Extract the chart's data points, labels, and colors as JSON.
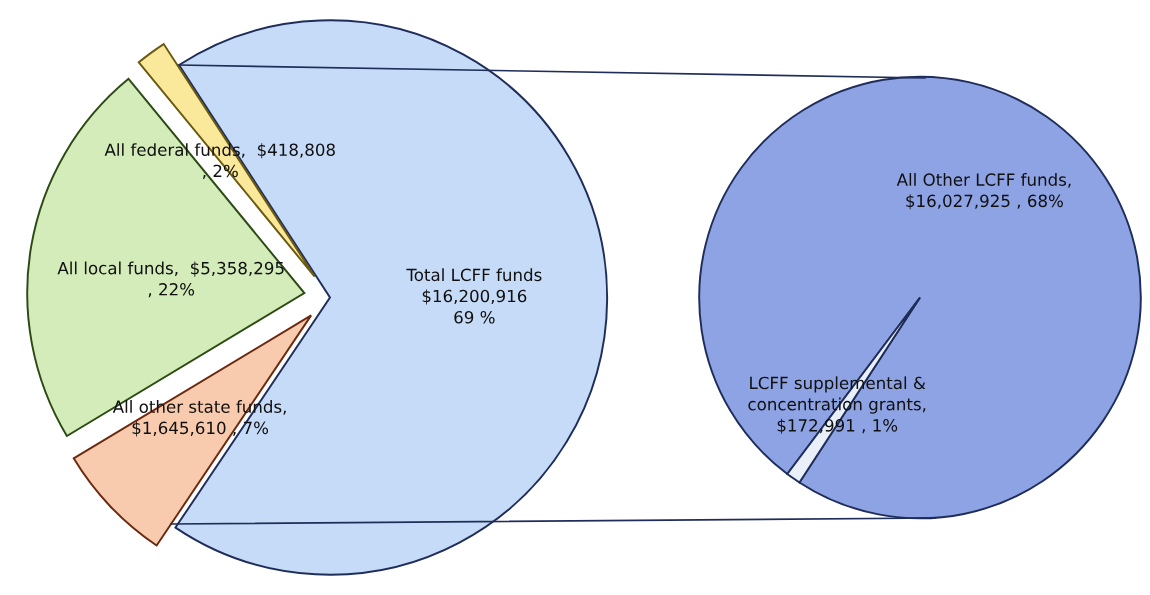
{
  "chart_data": [
    {
      "type": "pie",
      "categories": [
        "Total LCFF funds",
        "All other state funds",
        "All local funds",
        "All federal funds"
      ],
      "values": [
        16200916,
        1645610,
        5358295,
        418808
      ],
      "colors": [
        "#c6dbf7",
        "#f9cbae",
        "#d4ebba",
        "#fbe99b"
      ],
      "value_labels": [
        "\n$16,200,916\n69 %",
        ",\n$1,645,610 , 7%",
        ",  $5,358,295\n, 22%",
        ",  $418,808\n, 2%"
      ]
    },
    {
      "type": "pie",
      "categories": [
        "All Other LCFF funds",
        "LCFF supplemental &\nconcentration grants"
      ],
      "values": [
        16027925,
        172991
      ],
      "colors": [
        "#8ea3e4",
        "#e9f0f9"
      ],
      "value_labels": [
        ",\n$16,027,925 , 68%",
        ",\n$172,991 , 1%"
      ]
    }
  ]
}
